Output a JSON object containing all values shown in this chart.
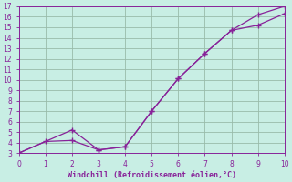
{
  "line1_x": [
    0,
    1,
    2,
    3,
    4,
    5,
    6,
    7,
    8,
    9,
    10
  ],
  "line1_y": [
    3.0,
    4.1,
    4.2,
    3.3,
    3.6,
    7.0,
    10.1,
    12.5,
    14.7,
    15.2,
    16.3
  ],
  "line2_x": [
    0,
    2,
    3,
    4,
    5,
    6,
    7,
    8,
    9,
    10
  ],
  "line2_y": [
    3.0,
    5.2,
    3.3,
    3.6,
    7.0,
    10.1,
    12.5,
    14.7,
    16.2,
    17.0
  ],
  "line_color": "#882299",
  "bg_color": "#c8eee4",
  "grid_color": "#99bbaa",
  "xlabel": "Windchill (Refroidissement éolien,°C)",
  "tick_color": "#882299",
  "xlim": [
    0,
    10
  ],
  "ylim": [
    3,
    17
  ],
  "xticks": [
    0,
    1,
    2,
    3,
    4,
    5,
    6,
    7,
    8,
    9,
    10
  ],
  "yticks": [
    3,
    4,
    5,
    6,
    7,
    8,
    9,
    10,
    11,
    12,
    13,
    14,
    15,
    16,
    17
  ]
}
